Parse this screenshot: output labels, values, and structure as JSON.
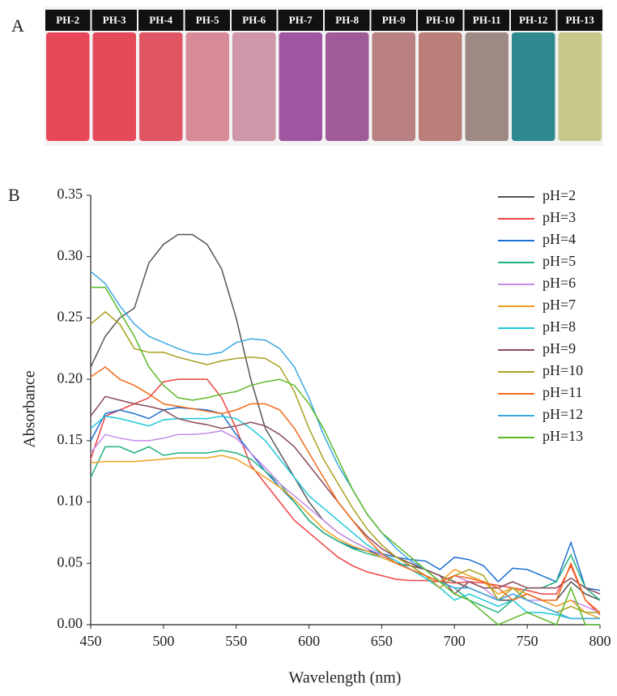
{
  "panel_labels": [
    "A",
    "B"
  ],
  "vials": {
    "labels": [
      "PH-2",
      "PH-3",
      "PH-4",
      "PH-5",
      "PH-6",
      "PH-7",
      "PH-8",
      "PH-9",
      "PH-10",
      "PH-11",
      "PH-12",
      "PH-13"
    ],
    "colors": [
      "#e8475a",
      "#e44a5a",
      "#e05563",
      "#d88a98",
      "#cf97a8",
      "#a055a0",
      "#9f5a98",
      "#b88080",
      "#b97f78",
      "#9e8a84",
      "#2f8a90",
      "#c8c88a"
    ]
  },
  "chart_data": {
    "type": "line",
    "xlabel": "Wavelength (nm)",
    "ylabel": "Absorbance",
    "x": [
      450,
      460,
      470,
      480,
      490,
      500,
      510,
      520,
      530,
      540,
      550,
      560,
      570,
      580,
      590,
      600,
      610,
      620,
      630,
      640,
      650,
      660,
      670,
      680,
      690,
      700,
      710,
      720,
      730,
      740,
      750,
      760,
      770,
      780,
      790,
      800
    ],
    "xlim": [
      450,
      800
    ],
    "xticks": [
      450,
      500,
      550,
      600,
      650,
      700,
      750,
      800
    ],
    "ylim": [
      0,
      0.35
    ],
    "yticks": [
      {
        "value": 0,
        "label": "0.00"
      },
      {
        "value": 0.05,
        "label": "0.05"
      },
      {
        "value": 0.1,
        "label": "0.10"
      },
      {
        "value": 0.15,
        "label": "0.15"
      },
      {
        "value": 0.2,
        "label": "0.20"
      },
      {
        "value": 0.25,
        "label": "0.25"
      },
      {
        "value": 0.3,
        "label": "0.30"
      },
      {
        "value": 0.35,
        "label": "0.35"
      }
    ],
    "legend": "upper right",
    "series": [
      {
        "name": "pH=2",
        "color": "#555555",
        "values": [
          0.21,
          0.235,
          0.25,
          0.258,
          0.295,
          0.31,
          0.318,
          0.318,
          0.31,
          0.29,
          0.25,
          0.2,
          0.16,
          0.14,
          0.12,
          0.1,
          0.085,
          0.075,
          0.068,
          0.062,
          0.055,
          0.05,
          0.048,
          0.045,
          0.04,
          0.035,
          0.03,
          0.025,
          0.02,
          0.02,
          0.025,
          0.02,
          0.02,
          0.035,
          0.025,
          0.02
        ]
      },
      {
        "name": "pH=3",
        "color": "#ef4444",
        "values": [
          0.135,
          0.17,
          0.175,
          0.18,
          0.185,
          0.198,
          0.2,
          0.2,
          0.2,
          0.185,
          0.16,
          0.13,
          0.115,
          0.1,
          0.085,
          0.075,
          0.065,
          0.055,
          0.048,
          0.043,
          0.04,
          0.037,
          0.036,
          0.036,
          0.035,
          0.034,
          0.035,
          0.034,
          0.032,
          0.03,
          0.028,
          0.025,
          0.025,
          0.048,
          0.02,
          0.008
        ]
      },
      {
        "name": "pH=4",
        "color": "#1c6fd0",
        "values": [
          0.15,
          0.172,
          0.175,
          0.172,
          0.168,
          0.175,
          0.177,
          0.176,
          0.175,
          0.172,
          0.155,
          0.14,
          0.125,
          0.112,
          0.1,
          0.085,
          0.075,
          0.068,
          0.063,
          0.06,
          0.058,
          0.055,
          0.053,
          0.052,
          0.045,
          0.055,
          0.053,
          0.048,
          0.035,
          0.046,
          0.045,
          0.04,
          0.035,
          0.067,
          0.03,
          0.028
        ]
      },
      {
        "name": "pH=5",
        "color": "#1fb37a",
        "values": [
          0.12,
          0.145,
          0.145,
          0.14,
          0.145,
          0.138,
          0.14,
          0.14,
          0.14,
          0.142,
          0.14,
          0.135,
          0.125,
          0.115,
          0.1,
          0.085,
          0.075,
          0.068,
          0.062,
          0.058,
          0.055,
          0.05,
          0.045,
          0.04,
          0.035,
          0.03,
          0.02,
          0.015,
          0.01,
          0.02,
          0.03,
          0.03,
          0.035,
          0.057,
          0.03,
          0.02
        ]
      },
      {
        "name": "pH=6",
        "color": "#c68ce8",
        "values": [
          0.14,
          0.155,
          0.152,
          0.15,
          0.15,
          0.152,
          0.155,
          0.155,
          0.156,
          0.158,
          0.152,
          0.14,
          0.128,
          0.115,
          0.105,
          0.095,
          0.085,
          0.075,
          0.068,
          0.062,
          0.057,
          0.05,
          0.045,
          0.04,
          0.035,
          0.04,
          0.035,
          0.03,
          0.02,
          0.025,
          0.02,
          0.02,
          0.015,
          0.02,
          0.015,
          0.01
        ]
      },
      {
        "name": "pH=7",
        "color": "#f0a020",
        "values": [
          0.132,
          0.133,
          0.133,
          0.133,
          0.134,
          0.135,
          0.136,
          0.136,
          0.136,
          0.138,
          0.135,
          0.128,
          0.12,
          0.112,
          0.102,
          0.09,
          0.078,
          0.07,
          0.064,
          0.06,
          0.055,
          0.05,
          0.045,
          0.04,
          0.035,
          0.045,
          0.04,
          0.035,
          0.025,
          0.03,
          0.025,
          0.02,
          0.015,
          0.02,
          0.01,
          0.005
        ]
      },
      {
        "name": "pH=8",
        "color": "#20c8d8",
        "values": [
          0.16,
          0.17,
          0.168,
          0.165,
          0.162,
          0.167,
          0.168,
          0.168,
          0.168,
          0.17,
          0.168,
          0.16,
          0.15,
          0.135,
          0.12,
          0.105,
          0.095,
          0.085,
          0.075,
          0.065,
          0.058,
          0.052,
          0.045,
          0.038,
          0.03,
          0.02,
          0.025,
          0.02,
          0.015,
          0.02,
          0.01,
          0.01,
          0.008,
          0.005,
          0.005,
          0.005
        ]
      },
      {
        "name": "pH=9",
        "color": "#8b4a5a",
        "values": [
          0.17,
          0.186,
          0.183,
          0.18,
          0.178,
          0.175,
          0.168,
          0.165,
          0.163,
          0.16,
          0.162,
          0.165,
          0.162,
          0.155,
          0.145,
          0.13,
          0.115,
          0.1,
          0.085,
          0.072,
          0.062,
          0.055,
          0.05,
          0.045,
          0.04,
          0.025,
          0.035,
          0.03,
          0.03,
          0.035,
          0.03,
          0.03,
          0.03,
          0.038,
          0.03,
          0.025
        ]
      },
      {
        "name": "pH=10",
        "color": "#a8a020",
        "values": [
          0.245,
          0.255,
          0.245,
          0.225,
          0.222,
          0.222,
          0.218,
          0.215,
          0.212,
          0.215,
          0.217,
          0.218,
          0.217,
          0.21,
          0.19,
          0.16,
          0.135,
          0.115,
          0.095,
          0.078,
          0.065,
          0.055,
          0.048,
          0.04,
          0.03,
          0.04,
          0.045,
          0.04,
          0.02,
          0.03,
          0.02,
          0.015,
          0.01,
          0.015,
          0.01,
          0.01
        ]
      },
      {
        "name": "pH=11",
        "color": "#f26a1b",
        "values": [
          0.202,
          0.21,
          0.2,
          0.195,
          0.188,
          0.18,
          0.178,
          0.176,
          0.174,
          0.172,
          0.175,
          0.18,
          0.18,
          0.175,
          0.16,
          0.14,
          0.12,
          0.1,
          0.085,
          0.07,
          0.058,
          0.05,
          0.045,
          0.04,
          0.035,
          0.04,
          0.038,
          0.035,
          0.03,
          0.02,
          0.025,
          0.02,
          0.02,
          0.05,
          0.02,
          0.01
        ]
      },
      {
        "name": "pH=12",
        "color": "#3aa8e0",
        "values": [
          0.288,
          0.278,
          0.26,
          0.245,
          0.235,
          0.23,
          0.225,
          0.221,
          0.22,
          0.222,
          0.23,
          0.233,
          0.232,
          0.225,
          0.21,
          0.185,
          0.155,
          0.13,
          0.11,
          0.09,
          0.075,
          0.062,
          0.052,
          0.045,
          0.035,
          0.03,
          0.03,
          0.025,
          0.02,
          0.025,
          0.02,
          0.015,
          0.01,
          0.005,
          0.005,
          0.005
        ]
      },
      {
        "name": "pH=13",
        "color": "#5ab828",
        "values": [
          0.275,
          0.275,
          0.255,
          0.235,
          0.21,
          0.195,
          0.185,
          0.183,
          0.185,
          0.188,
          0.19,
          0.195,
          0.198,
          0.2,
          0.195,
          0.18,
          0.16,
          0.135,
          0.11,
          0.09,
          0.075,
          0.065,
          0.055,
          0.045,
          0.035,
          0.025,
          0.02,
          0.01,
          0,
          0.005,
          0.01,
          0.005,
          0,
          0.03,
          0,
          0
        ]
      }
    ]
  }
}
